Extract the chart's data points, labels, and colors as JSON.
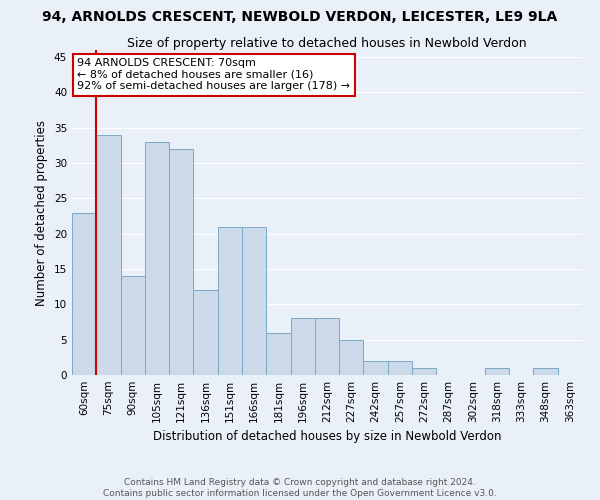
{
  "title": "94, ARNOLDS CRESCENT, NEWBOLD VERDON, LEICESTER, LE9 9LA",
  "subtitle": "Size of property relative to detached houses in Newbold Verdon",
  "xlabel": "Distribution of detached houses by size in Newbold Verdon",
  "ylabel": "Number of detached properties",
  "categories": [
    "60sqm",
    "75sqm",
    "90sqm",
    "105sqm",
    "121sqm",
    "136sqm",
    "151sqm",
    "166sqm",
    "181sqm",
    "196sqm",
    "212sqm",
    "227sqm",
    "242sqm",
    "257sqm",
    "272sqm",
    "287sqm",
    "302sqm",
    "318sqm",
    "333sqm",
    "348sqm",
    "363sqm"
  ],
  "values": [
    23,
    34,
    14,
    33,
    32,
    12,
    21,
    21,
    6,
    8,
    8,
    5,
    2,
    2,
    1,
    0,
    0,
    1,
    0,
    1,
    0
  ],
  "bar_color": "#ccd9e8",
  "bar_edge_color": "#7aaac8",
  "background_color": "#eaf0f8",
  "grid_color": "#ffffff",
  "annotation_text": "94 ARNOLDS CRESCENT: 70sqm\n← 8% of detached houses are smaller (16)\n92% of semi-detached houses are larger (178) →",
  "annotation_box_facecolor": "#ffffff",
  "annotation_box_edgecolor": "#cc0000",
  "vline_index": 1,
  "vline_color": "#cc0000",
  "ylim": [
    0,
    46
  ],
  "yticks": [
    0,
    5,
    10,
    15,
    20,
    25,
    30,
    35,
    40,
    45
  ],
  "footer": "Contains HM Land Registry data © Crown copyright and database right 2024.\nContains public sector information licensed under the Open Government Licence v3.0.",
  "title_fontsize": 10,
  "subtitle_fontsize": 9,
  "axis_label_fontsize": 8.5,
  "tick_fontsize": 7.5,
  "annotation_fontsize": 8,
  "footer_fontsize": 6.5
}
